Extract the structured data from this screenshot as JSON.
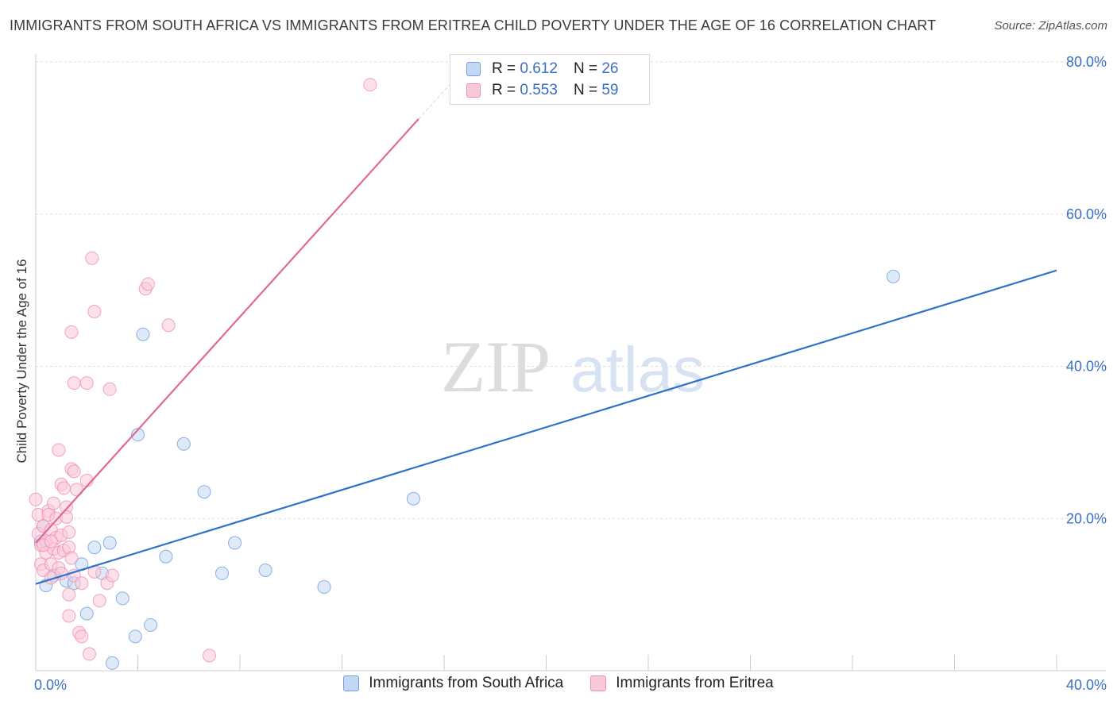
{
  "title": "IMMIGRANTS FROM SOUTH AFRICA VS IMMIGRANTS FROM ERITREA CHILD POVERTY UNDER THE AGE OF 16 CORRELATION CHART",
  "source": "Source: ZipAtlas.com",
  "watermark": {
    "zip": "ZIP",
    "atlas": "atlas"
  },
  "legend": {
    "series1": {
      "r_label": "R =",
      "r_value": "0.612",
      "n_label": "N =",
      "n_value": "26"
    },
    "series2": {
      "r_label": "R =",
      "r_value": "0.553",
      "n_label": "N =",
      "n_value": "59"
    }
  },
  "chart_data": {
    "type": "scatter",
    "title": "IMMIGRANTS FROM SOUTH AFRICA VS IMMIGRANTS FROM ERITREA CHILD POVERTY UNDER THE AGE OF 16 CORRELATION CHART",
    "xlabel": "",
    "ylabel": "Child Poverty Under the Age of 16",
    "xlim": [
      0,
      40
    ],
    "ylim": [
      0,
      80
    ],
    "x_tick_labels": [
      "0.0%",
      "40.0%"
    ],
    "y_ticks": [
      20,
      40,
      60,
      80
    ],
    "y_tick_labels": [
      "20.0%",
      "40.0%",
      "60.0%",
      "80.0%"
    ],
    "grid": true,
    "legend_position": "top-center",
    "colors": {
      "south_africa": "#6f9ee0",
      "eritrea": "#ef8fae",
      "south_africa_line": "#2f73c9",
      "eritrea_line": "#e06a93",
      "tick_label": "#3a6fc4"
    },
    "series": [
      {
        "name": "Immigrants from South Africa",
        "color": "#6f9ee0",
        "trend": {
          "x": [
            0,
            40
          ],
          "y": [
            11.4,
            52.6
          ]
        },
        "points": [
          [
            0.4,
            11.2
          ],
          [
            0.7,
            12.5
          ],
          [
            1.2,
            11.8
          ],
          [
            1.5,
            11.5
          ],
          [
            1.8,
            14.0
          ],
          [
            2.0,
            7.5
          ],
          [
            2.3,
            16.2
          ],
          [
            2.6,
            12.8
          ],
          [
            2.9,
            16.8
          ],
          [
            3.0,
            1.0
          ],
          [
            3.4,
            9.5
          ],
          [
            3.9,
            4.5
          ],
          [
            4.0,
            31.0
          ],
          [
            4.2,
            44.2
          ],
          [
            4.5,
            6.0
          ],
          [
            5.1,
            15.0
          ],
          [
            5.8,
            29.8
          ],
          [
            6.6,
            23.5
          ],
          [
            7.3,
            12.8
          ],
          [
            7.8,
            16.8
          ],
          [
            9.0,
            13.2
          ],
          [
            11.3,
            11.0
          ],
          [
            14.8,
            22.6
          ],
          [
            33.6,
            51.8
          ],
          [
            0.2,
            17.0
          ],
          [
            0.3,
            19.0
          ]
        ]
      },
      {
        "name": "Immigrants from Eritrea",
        "color": "#ef8fae",
        "trend": {
          "x": [
            0,
            15
          ],
          "y": [
            16.8,
            72.5
          ]
        },
        "points": [
          [
            0.0,
            22.5
          ],
          [
            0.1,
            20.5
          ],
          [
            0.1,
            18.0
          ],
          [
            0.2,
            16.5
          ],
          [
            0.2,
            14.0
          ],
          [
            0.3,
            13.2
          ],
          [
            0.3,
            19.0
          ],
          [
            0.4,
            17.0
          ],
          [
            0.4,
            15.5
          ],
          [
            0.5,
            21.0
          ],
          [
            0.5,
            20.5
          ],
          [
            0.6,
            18.5
          ],
          [
            0.6,
            14.0
          ],
          [
            0.6,
            12.2
          ],
          [
            0.7,
            16.0
          ],
          [
            0.7,
            22.0
          ],
          [
            0.8,
            20.0
          ],
          [
            0.8,
            17.5
          ],
          [
            0.9,
            15.5
          ],
          [
            0.9,
            13.5
          ],
          [
            0.9,
            29.0
          ],
          [
            1.0,
            24.5
          ],
          [
            1.0,
            17.8
          ],
          [
            1.0,
            12.8
          ],
          [
            1.1,
            24.0
          ],
          [
            1.1,
            15.8
          ],
          [
            1.2,
            21.5
          ],
          [
            1.2,
            20.2
          ],
          [
            1.3,
            18.2
          ],
          [
            1.3,
            16.2
          ],
          [
            1.3,
            10.0
          ],
          [
            1.3,
            7.2
          ],
          [
            1.4,
            14.8
          ],
          [
            1.4,
            26.5
          ],
          [
            1.5,
            12.5
          ],
          [
            1.4,
            44.5
          ],
          [
            1.5,
            37.8
          ],
          [
            1.5,
            26.2
          ],
          [
            1.6,
            23.8
          ],
          [
            1.7,
            5.0
          ],
          [
            1.8,
            4.5
          ],
          [
            1.8,
            11.5
          ],
          [
            2.0,
            25.0
          ],
          [
            2.0,
            37.8
          ],
          [
            2.1,
            2.2
          ],
          [
            2.2,
            54.2
          ],
          [
            2.3,
            13.0
          ],
          [
            2.3,
            47.2
          ],
          [
            2.5,
            9.2
          ],
          [
            2.8,
            11.5
          ],
          [
            2.9,
            37.0
          ],
          [
            3.0,
            12.5
          ],
          [
            4.3,
            50.2
          ],
          [
            4.4,
            50.8
          ],
          [
            5.2,
            45.4
          ],
          [
            6.8,
            2.0
          ],
          [
            13.1,
            77.0
          ],
          [
            0.3,
            16.5
          ],
          [
            0.6,
            17.0
          ]
        ]
      }
    ]
  },
  "bottom_legend": {
    "item1": "Immigrants from South Africa",
    "item2": "Immigrants from Eritrea"
  }
}
